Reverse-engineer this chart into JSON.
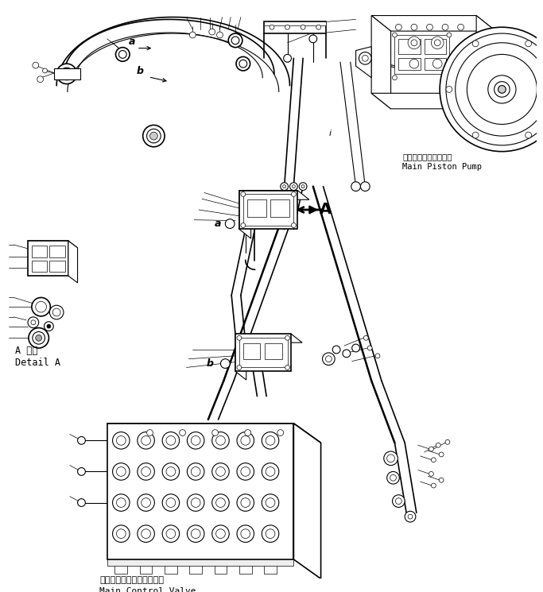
{
  "bg_color": "#ffffff",
  "line_color": "#000000",
  "labels": {
    "main_piston_pump_jp": "メインビストンポンプ",
    "main_piston_pump_en": "Main Piston Pump",
    "main_control_valve_jp": "メインコントロールバルブ",
    "main_control_valve_en": "Main Control Valve",
    "detail_a_jp": "A 詳細",
    "detail_a_en": "Detail A",
    "label_a_top": "a",
    "label_b_top": "b",
    "label_a_mid": "a",
    "label_b_bot": "b",
    "label_A": "A",
    "label_i": "i"
  },
  "figsize": [
    6.83,
    7.45
  ],
  "dpi": 100
}
